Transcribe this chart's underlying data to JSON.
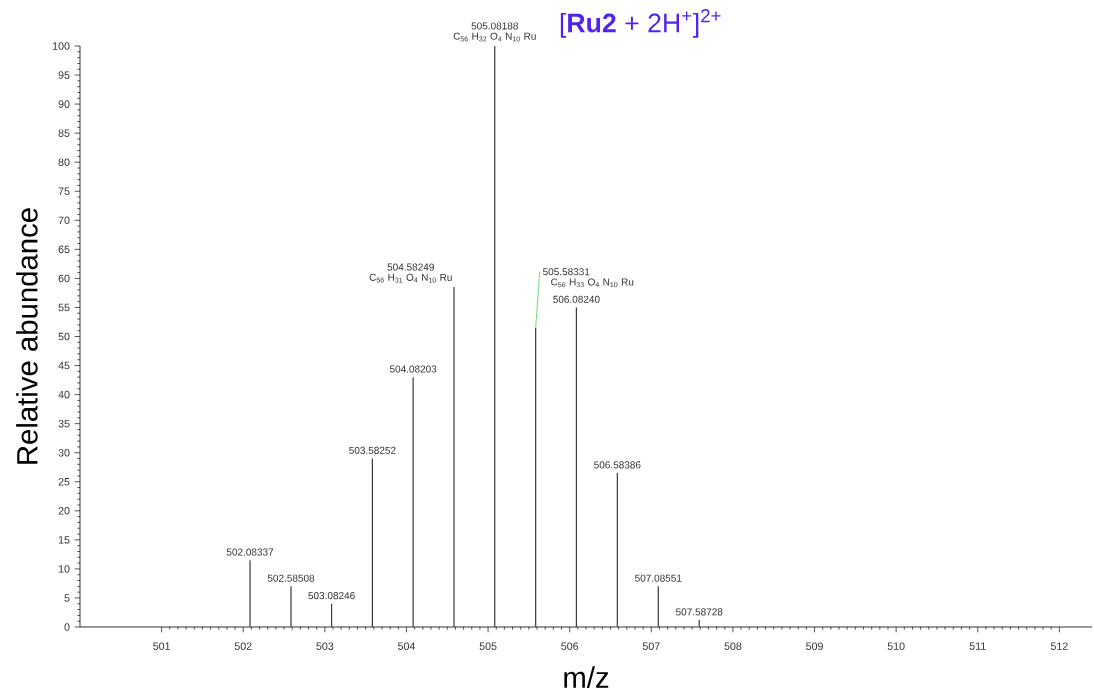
{
  "chart_data": {
    "type": "bar",
    "title": "[**Ru2** + 2H$^{+}$]$^{2+}$",
    "xlabel": "m/z",
    "ylabel": "Relative abundance",
    "x": [
      502.08337,
      502.58508,
      503.08246,
      503.58252,
      504.08203,
      504.58249,
      505.08188,
      505.58331,
      506.0824,
      506.58386,
      507.08551,
      507.58728
    ],
    "values": [
      11.5,
      7,
      4,
      29,
      43,
      58.5,
      100,
      51.5,
      55,
      26.5,
      7,
      1.2
    ],
    "color": "#3a3a3a",
    "annotations": [
      {
        "text": "502.08337",
        "x": 502.08337,
        "y": 11.5
      },
      {
        "text": "502.58508",
        "x": 502.58508,
        "y": 7
      },
      {
        "text": "503.08246",
        "x": 503.08246,
        "y": 4
      },
      {
        "text": "503.58252",
        "x": 503.58252,
        "y": 29
      },
      {
        "text": "504.08203",
        "x": 504.08203,
        "y": 43
      },
      "C$_{56}$ H$_{31}$ O$_{4}$ N$_{10}$ Ru",
      {
        "text": "504.58249",
        "x": 504.58249,
        "y": 58.5
      },
      "C$_{56}$ H$_{32}$ O$_{4}$ N$_{10}$ Ru",
      {
        "text": "505.08188",
        "x": 505.08188,
        "y": 100
      },
      "C$_{56}$ H$_{33}$ O$_{4}$ N$_{10}$ Ru",
      {
        "text": "505.58331",
        "x": 505.58331,
        "y": 51.5
      },
      {
        "text": "506.08240",
        "x": 506.0824,
        "y": 55
      },
      {
        "text": "506.58386",
        "x": 506.58386,
        "y": 26.5
      },
      {
        "text": "507.08551",
        "x": 507.08551,
        "y": 7
      },
      {
        "text": "507.58728",
        "x": 507.58728,
        "y": 1.2
      }
    ],
    "xlim": [
      500.0,
      512.4
    ],
    "ylim": [
      0,
      100
    ],
    "xticks": [
      501,
      502,
      503,
      504,
      505,
      506,
      507,
      508,
      509,
      510,
      511,
      512
    ],
    "yticks": [
      0,
      5,
      10,
      15,
      20,
      25,
      30,
      35,
      40,
      45,
      50,
      55,
      60,
      65,
      70,
      75,
      80,
      85,
      90,
      95,
      100
    ]
  }
}
